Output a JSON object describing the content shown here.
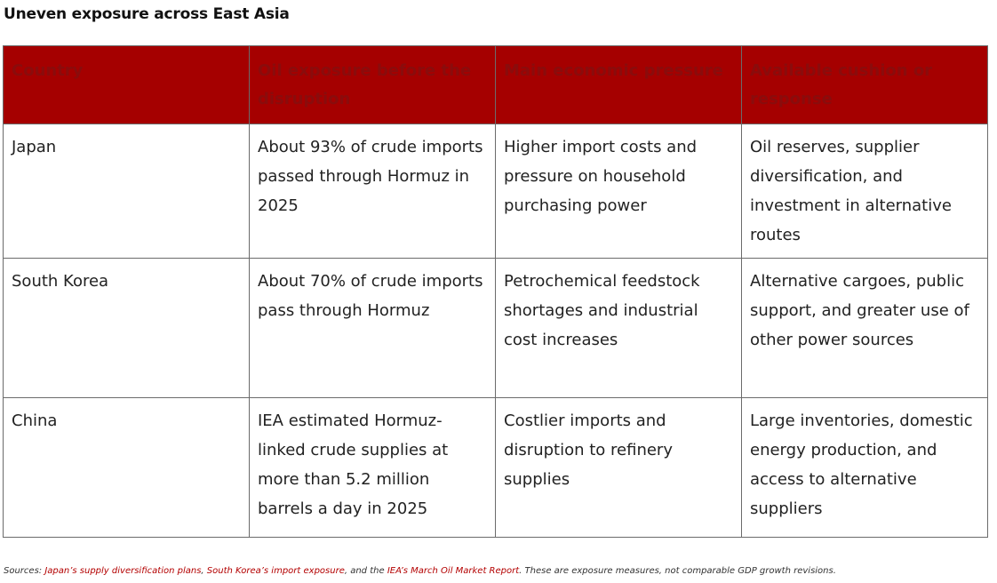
{
  "title": "Uneven exposure across East Asia",
  "colors": {
    "header_bg": "#a50000",
    "header_text": "#8a0c0c",
    "link": "#b30000"
  },
  "table": {
    "headers": [
      "Country",
      "Oil exposure before the disruption",
      "Main economic pressure",
      "Available cushion or response"
    ],
    "rows": [
      {
        "country": "Japan",
        "exposure": "About 93% of crude imports passed through Hormuz in 2025",
        "pressure": "Higher import costs and pressure on household purchasing power",
        "response": "Oil reserves, supplier diversification, and investment in alternative routes"
      },
      {
        "country": "South Korea",
        "exposure": "About 70% of crude imports pass through Hormuz",
        "pressure": "Petrochemical feedstock shortages and industrial cost increases",
        "response": "Alternative cargoes, public support, and greater use of other power sources"
      },
      {
        "country": "China",
        "exposure": "IEA estimated Hormuz-linked crude supplies at more than 5.2 million barrels a day in 2025",
        "pressure": "Costlier imports and disruption to refinery supplies",
        "response": "Large inventories, domestic energy production, and access to alternative suppliers"
      }
    ]
  },
  "sources": {
    "prefix": "Sources: ",
    "link1": "Japan’s supply diversification plans",
    "sep1": ", ",
    "link2": "South Korea’s import exposure",
    "sep2": ", and the ",
    "link3": "IEA’s March Oil Market Report",
    "suffix": ". These are exposure measures, not comparable GDP growth revisions."
  }
}
